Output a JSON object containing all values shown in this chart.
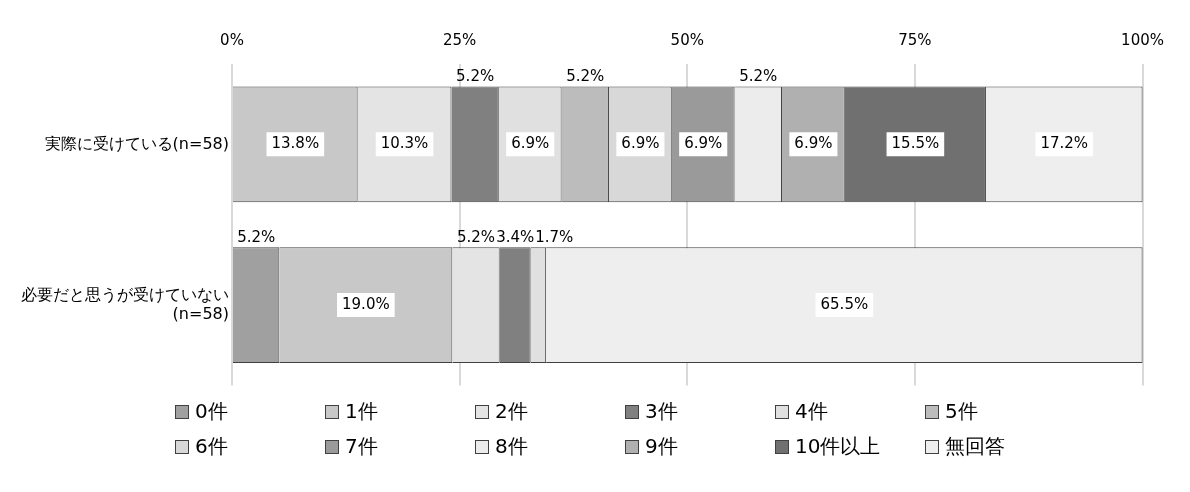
{
  "chart_data": {
    "type": "bar",
    "orientation": "horizontal",
    "stacked": true,
    "categories": [
      "実際に受けている(n=58)",
      "必要だと思うが受けていない(n=58)"
    ],
    "xlim": [
      0,
      100
    ],
    "xticks": [
      {
        "value": 0,
        "label": "0%"
      },
      {
        "value": 25,
        "label": "25%"
      },
      {
        "value": 50,
        "label": "50%"
      },
      {
        "value": 75,
        "label": "75%"
      },
      {
        "value": 100,
        "label": "100%"
      }
    ],
    "grid": "x",
    "legend": "bottom",
    "series": [
      {
        "name": "0件",
        "color": "#a0a0a0",
        "values": [
          0,
          5.2
        ],
        "value_labels": [
          null,
          "5.2%"
        ]
      },
      {
        "name": "1件",
        "color": "#c8c8c8",
        "values": [
          13.8,
          19.0
        ],
        "value_labels": [
          "13.8%",
          "19.0%"
        ]
      },
      {
        "name": "2件",
        "color": "#e4e4e4",
        "values": [
          10.3,
          5.2
        ],
        "value_labels": [
          "10.3%",
          "5.2%"
        ]
      },
      {
        "name": "3件",
        "color": "#808080",
        "values": [
          5.2,
          3.4
        ],
        "value_labels": [
          "5.2%",
          "3.4%"
        ]
      },
      {
        "name": "4件",
        "color": "#e0e0e0",
        "values": [
          6.9,
          1.7
        ],
        "value_labels": [
          "6.9%",
          "1.7%"
        ]
      },
      {
        "name": "5件",
        "color": "#bcbcbc",
        "values": [
          5.2,
          0
        ],
        "value_labels": [
          "5.2%",
          null
        ]
      },
      {
        "name": "6件",
        "color": "#d8d8d8",
        "values": [
          6.9,
          0
        ],
        "value_labels": [
          "6.9%",
          null
        ]
      },
      {
        "name": "7件",
        "color": "#9a9a9a",
        "values": [
          6.9,
          0
        ],
        "value_labels": [
          "6.9%",
          null
        ]
      },
      {
        "name": "8件",
        "color": "#ececec",
        "values": [
          5.2,
          0
        ],
        "value_labels": [
          "5.2%",
          null
        ]
      },
      {
        "name": "9件",
        "color": "#b0b0b0",
        "values": [
          6.9,
          0
        ],
        "value_labels": [
          "6.9%",
          null
        ]
      },
      {
        "name": "10件以上",
        "color": "#707070",
        "values": [
          15.5,
          0
        ],
        "value_labels": [
          "15.5%",
          null
        ]
      },
      {
        "name": "無回答",
        "color": "#eeeeee",
        "values": [
          17.2,
          65.5
        ],
        "value_labels": [
          "17.2%",
          "65.5%"
        ]
      }
    ]
  }
}
